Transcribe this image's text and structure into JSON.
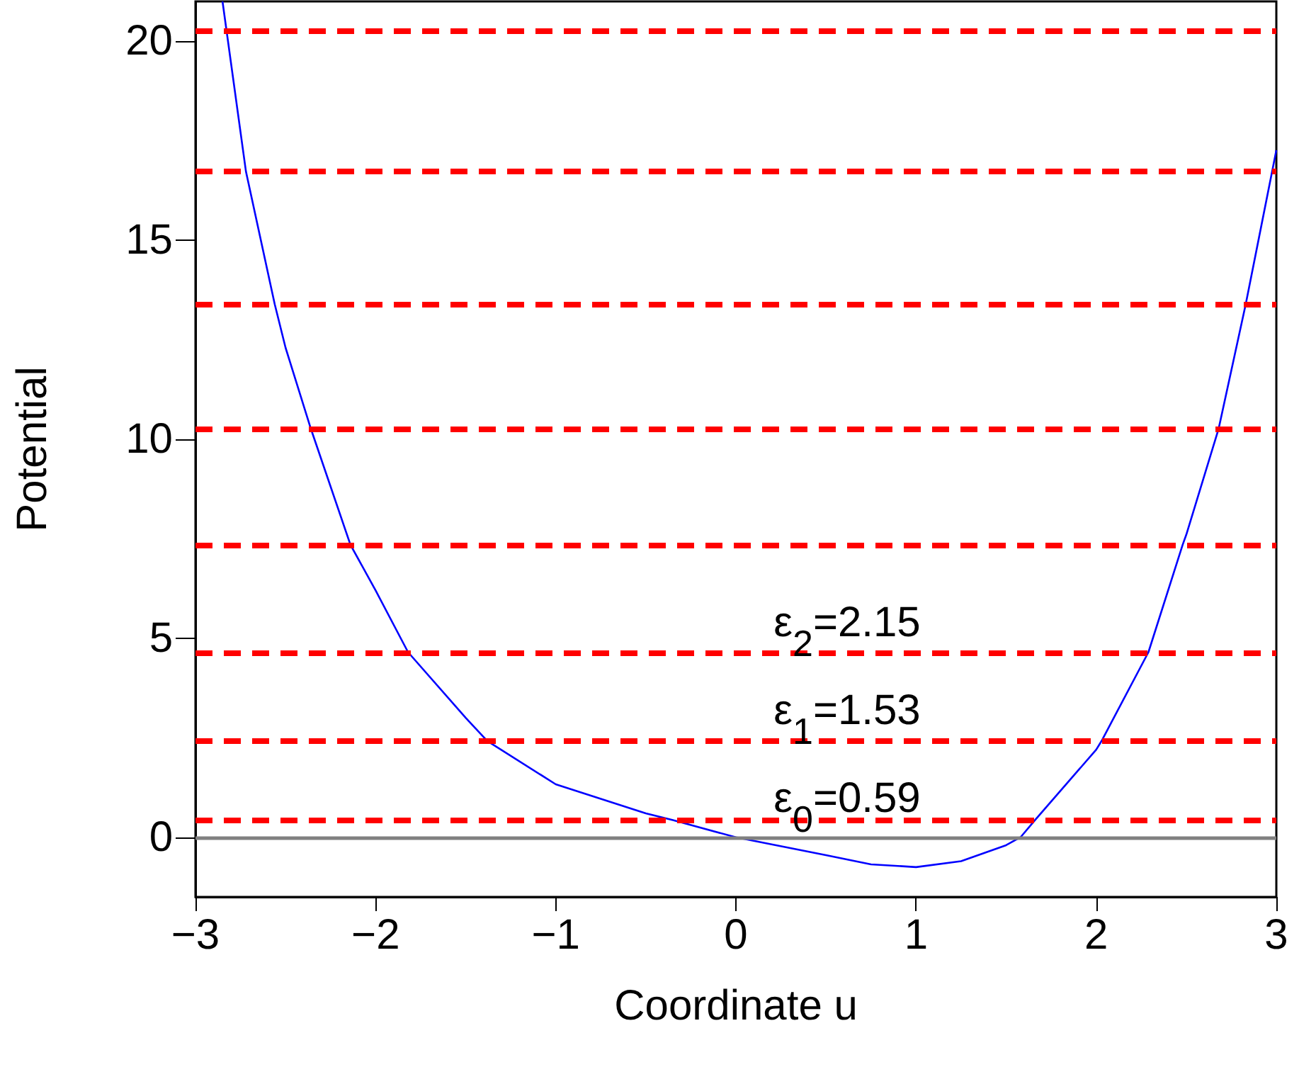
{
  "chart_data": {
    "type": "line",
    "xlabel": "Coordinate u",
    "ylabel": "Potential",
    "x": [
      -2.85,
      -2.72,
      -2.56,
      -2.5,
      -2.36,
      -2.14,
      -2.0,
      -1.82,
      -1.5,
      -1.38,
      -1.0,
      -0.5,
      -0.35,
      0,
      0.5,
      0.75,
      1.0,
      1.25,
      1.5,
      1.58,
      1.66,
      2.0,
      2.03,
      2.29,
      2.48,
      2.5,
      2.68,
      2.83,
      3.0
    ],
    "series": [
      {
        "color": "#0000ff",
        "values": [
          21.0,
          16.73,
          13.39,
          12.3,
          10.27,
          7.35,
          6.2,
          4.65,
          3.0,
          2.42,
          1.33,
          0.6,
          0.43,
          0,
          -0.45,
          -0.68,
          -0.75,
          -0.6,
          -0.2,
          0,
          0.43,
          2.2,
          2.42,
          4.65,
          7.35,
          7.6,
          10.27,
          13.39,
          17.26
        ]
      }
    ],
    "xlim": [
      -3,
      3
    ],
    "ylim": [
      -1.5,
      21
    ],
    "xticks": [
      -3,
      -2,
      -1,
      0,
      1,
      2,
      3
    ],
    "yticks": [
      0,
      5,
      10,
      15,
      20
    ],
    "grid": false,
    "marker": "none",
    "line_style": "solid",
    "ref_lines": [
      {
        "axis": "y",
        "value": 0,
        "color": "#808080",
        "line_style": "solid"
      },
      {
        "axis": "y",
        "value": 0.43,
        "color": "#ff0000",
        "line_style": "dashed"
      },
      {
        "axis": "y",
        "value": 2.42,
        "color": "#ff0000",
        "line_style": "dashed"
      },
      {
        "axis": "y",
        "value": 4.65,
        "color": "#ff0000",
        "line_style": "dashed"
      },
      {
        "axis": "y",
        "value": 7.35,
        "color": "#ff0000",
        "line_style": "dashed"
      },
      {
        "axis": "y",
        "value": 10.27,
        "color": "#ff0000",
        "line_style": "dashed"
      },
      {
        "axis": "y",
        "value": 13.39,
        "color": "#ff0000",
        "line_style": "dashed"
      },
      {
        "axis": "y",
        "value": 16.73,
        "color": "#ff0000",
        "line_style": "dashed"
      },
      {
        "axis": "y",
        "value": 20.25,
        "color": "#ff0000",
        "line_style": "dashed"
      }
    ],
    "annotations": [
      "ε$_{2}$=2.15",
      "ε$_{1}$=1.53",
      "ε$_{0}$=0.59"
    ]
  }
}
